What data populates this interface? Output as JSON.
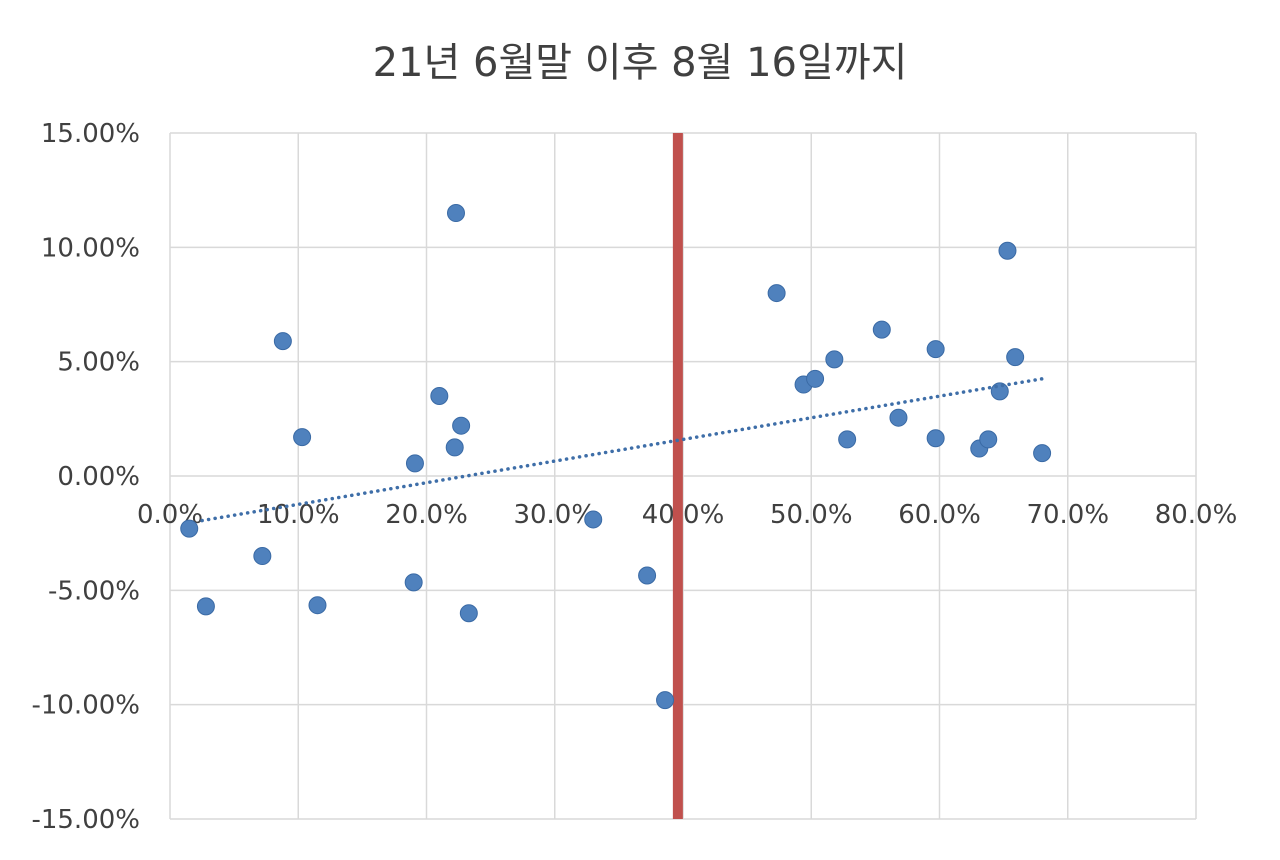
{
  "chart_data": {
    "type": "scatter",
    "title": "21년 6월말 이후 8월 16일까지",
    "xlabel": "",
    "ylabel": "",
    "xlim": [
      0,
      80
    ],
    "ylim": [
      -15,
      15
    ],
    "x_ticks": [
      0,
      10,
      20,
      30,
      40,
      50,
      60,
      70,
      80
    ],
    "y_ticks": [
      15,
      10,
      5,
      0,
      -5,
      -10,
      -15
    ],
    "x_tick_labels": [
      "0.0%",
      "10.0%",
      "20.0%",
      "30.0%",
      "40.0%",
      "50.0%",
      "60.0%",
      "70.0%",
      "80.0%"
    ],
    "y_tick_labels": [
      "15.00%",
      "10.00%",
      "5.00%",
      "0.00%",
      "-5.00%",
      "-10.00%",
      "-15.00%"
    ],
    "grid": true,
    "legend": "none",
    "colors": {
      "points": "#4f81bd",
      "point_stroke": "#3a6aa5",
      "trendline": "#3e6ea8",
      "vertical_marker": "#c0504d",
      "grid": "#d9d9d9",
      "text": "#404040"
    },
    "series": [
      {
        "points": [
          [
            1.5,
            -2.3
          ],
          [
            2.8,
            -5.7
          ],
          [
            7.2,
            -3.5
          ],
          [
            8.8,
            5.9
          ],
          [
            10.3,
            1.7
          ],
          [
            11.5,
            -5.65
          ],
          [
            19.0,
            -4.65
          ],
          [
            19.1,
            0.55
          ],
          [
            21.0,
            3.5
          ],
          [
            22.2,
            1.25
          ],
          [
            22.3,
            11.5
          ],
          [
            22.7,
            2.2
          ],
          [
            23.3,
            -6.0
          ],
          [
            33.0,
            -1.9
          ],
          [
            37.2,
            -4.35
          ],
          [
            38.6,
            -9.8
          ],
          [
            47.3,
            8.0
          ],
          [
            49.4,
            4.0
          ],
          [
            50.3,
            4.25
          ],
          [
            51.8,
            5.1
          ],
          [
            52.8,
            1.6
          ],
          [
            55.5,
            6.4
          ],
          [
            56.8,
            2.55
          ],
          [
            59.7,
            5.55
          ],
          [
            59.7,
            1.65
          ],
          [
            63.1,
            1.2
          ],
          [
            63.8,
            1.6
          ],
          [
            64.7,
            3.7
          ],
          [
            65.3,
            9.85
          ],
          [
            65.9,
            5.2
          ],
          [
            68.0,
            1.0
          ]
        ]
      }
    ],
    "trendline": {
      "type": "linear",
      "style": "dotted",
      "x_start": 2.5,
      "y_start": -1.95,
      "x_end": 68.0,
      "y_end": 4.25
    },
    "vertical_marker": {
      "x": 39.6,
      "color": "#c0504d"
    }
  }
}
